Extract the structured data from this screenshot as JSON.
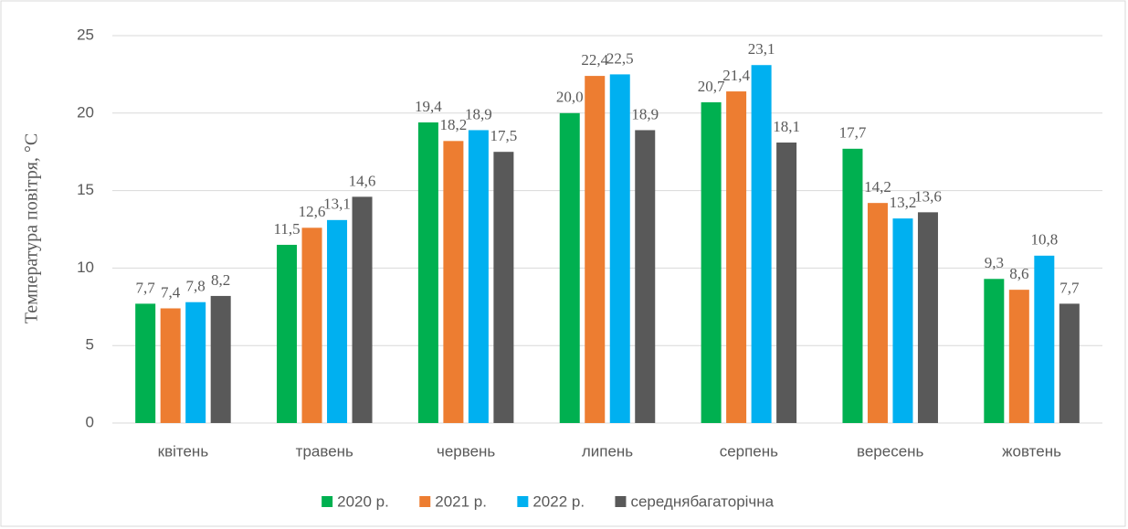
{
  "chart_data": {
    "type": "bar",
    "y_label": "Температура повітря, °C",
    "categories": [
      "квітень",
      "травень",
      "червень",
      "липень",
      "серпень",
      "вересень",
      "жовтень"
    ],
    "series": [
      {
        "name": "2020 р.",
        "color": "#00b050",
        "values": [
          7.7,
          11.5,
          19.4,
          20.0,
          20.7,
          17.7,
          9.3
        ],
        "value_labels": [
          "7,7",
          "11,5",
          "19,4",
          "20,0",
          "20,7",
          "17,7",
          "9,3"
        ]
      },
      {
        "name": "2021 р.",
        "color": "#ed7d31",
        "values": [
          7.4,
          12.6,
          18.2,
          22.4,
          21.4,
          14.2,
          8.6
        ],
        "value_labels": [
          "7,4",
          "12,6",
          "18,2",
          "22,4",
          "21,4",
          "14,2",
          "8,6"
        ]
      },
      {
        "name": "2022 р.",
        "color": "#00b0f0",
        "values": [
          7.8,
          13.1,
          18.9,
          22.5,
          23.1,
          13.2,
          10.8
        ],
        "value_labels": [
          "7,8",
          "13,1",
          "18,9",
          "22,5",
          "23,1",
          "13,2",
          "10,8"
        ]
      },
      {
        "name": "середнябагаторічна",
        "color": "#595959",
        "values": [
          8.2,
          14.6,
          17.5,
          18.9,
          18.1,
          13.6,
          7.7
        ],
        "value_labels": [
          "8,2",
          "14,6",
          "17,5",
          "18,9",
          "18,1",
          "13,6",
          "7,7"
        ]
      }
    ],
    "ylim": [
      0,
      25
    ],
    "yticks": [
      0,
      5,
      10,
      15,
      20,
      25
    ],
    "grid": true,
    "legend": "bottom"
  }
}
